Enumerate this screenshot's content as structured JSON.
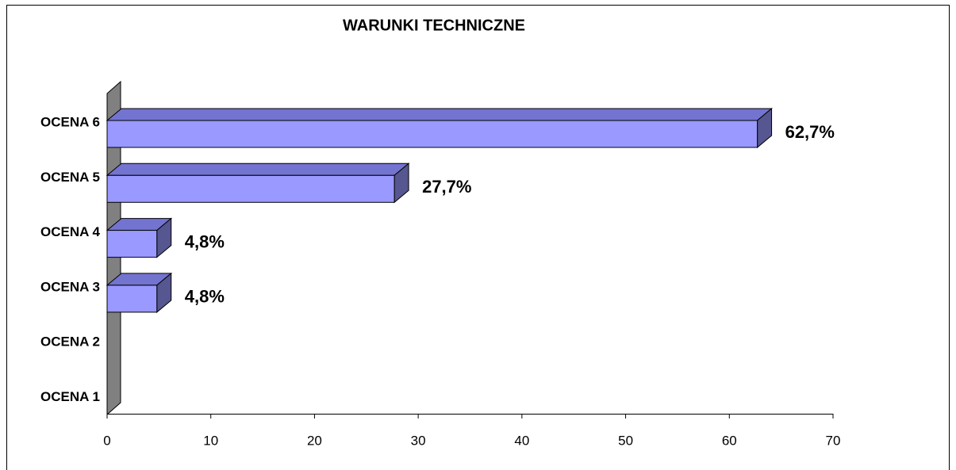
{
  "chart_data": {
    "type": "bar3d_horizontal",
    "title": "WARUNKI TECHNICZNE",
    "categories": [
      "OCENA 6",
      "OCENA 5",
      "OCENA 4",
      "OCENA 3",
      "OCENA 2",
      "OCENA 1"
    ],
    "values": [
      62.7,
      27.7,
      4.8,
      4.8,
      null,
      null
    ],
    "value_labels": [
      "62,7%",
      "27,7%",
      "4,8%",
      "4,8%",
      null,
      null
    ],
    "color": "#9999ff",
    "xlim": [
      0,
      70
    ],
    "xticks": [
      0,
      10,
      20,
      30,
      40,
      50,
      60,
      70
    ]
  }
}
